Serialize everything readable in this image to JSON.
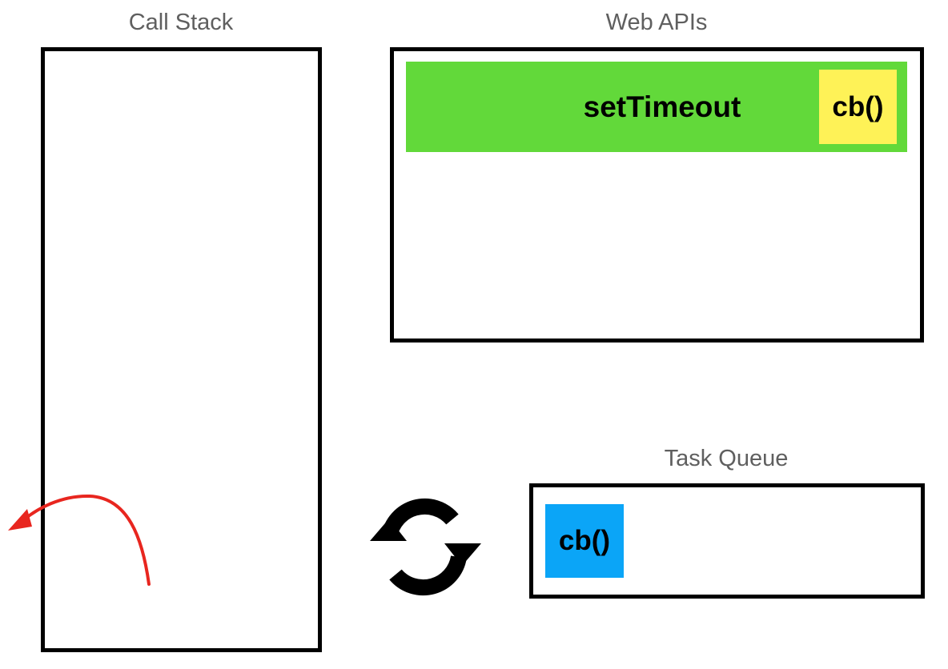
{
  "call_stack": {
    "label": "Call Stack"
  },
  "web_apis": {
    "label": "Web APIs",
    "timer": {
      "label": "setTimeout",
      "color": "#62d93a"
    },
    "callback": {
      "label": "cb()",
      "color": "#fef257"
    }
  },
  "task_queue": {
    "label": "Task Queue",
    "items": [
      {
        "label": "cb()",
        "color": "#0ba5f7"
      }
    ]
  },
  "event_loop": {
    "icon": "refresh-cycle-icon"
  },
  "arrow": {
    "icon": "red-curved-arrow-icon",
    "color": "#e8261f"
  }
}
